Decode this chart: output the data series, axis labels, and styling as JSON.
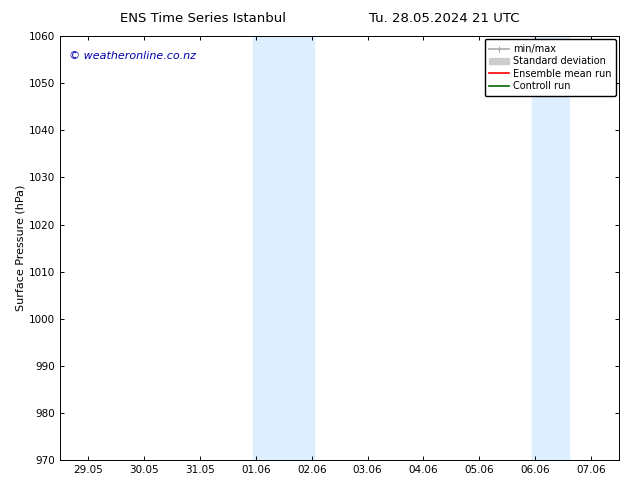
{
  "title_left": "ENS Time Series Istanbul",
  "title_right": "Tu. 28.05.2024 21 UTC",
  "ylabel": "Surface Pressure (hPa)",
  "ylim": [
    970,
    1060
  ],
  "yticks": [
    970,
    980,
    990,
    1000,
    1010,
    1020,
    1030,
    1040,
    1050,
    1060
  ],
  "xtick_labels": [
    "29.05",
    "30.05",
    "31.05",
    "01.06",
    "02.06",
    "03.06",
    "04.06",
    "05.06",
    "06.06",
    "07.06"
  ],
  "band_color": "#ddeeff",
  "background_color": "#ffffff",
  "watermark_text": "© weatheronline.co.nz",
  "watermark_color": "#0000aa",
  "legend_items": [
    {
      "label": "min/max",
      "color": "#aaaaaa",
      "lw": 1.2
    },
    {
      "label": "Standard deviation",
      "color": "#cccccc",
      "lw": 5
    },
    {
      "label": "Ensemble mean run",
      "color": "#ff0000",
      "lw": 1.2
    },
    {
      "label": "Controll run",
      "color": "#006600",
      "lw": 1.2
    }
  ],
  "tick_font_size": 7.5,
  "ylabel_font_size": 8,
  "title_font_size": 9.5,
  "legend_font_size": 7,
  "watermark_font_size": 8
}
